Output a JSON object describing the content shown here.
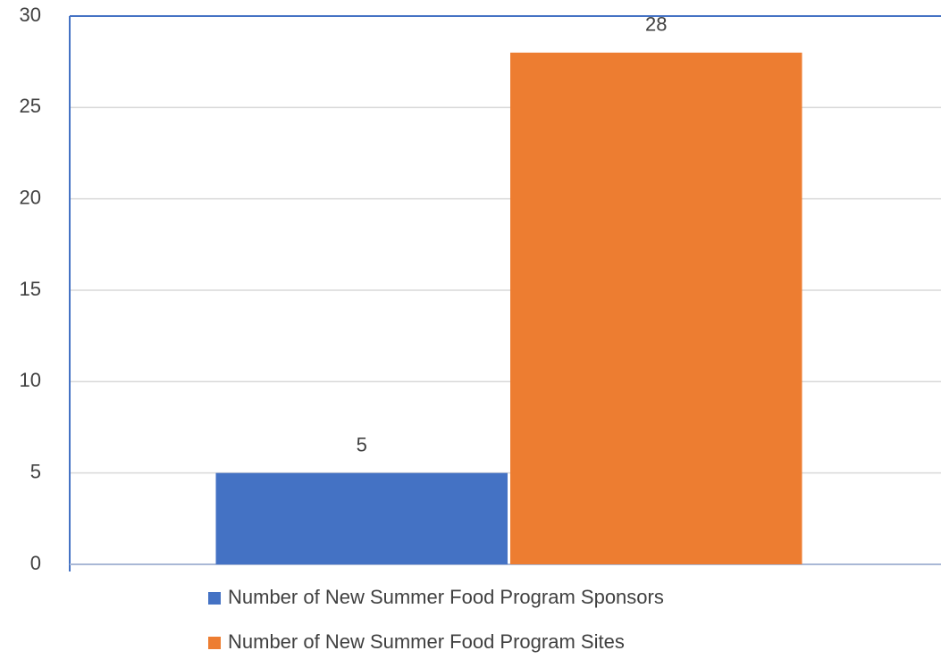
{
  "chart_data": {
    "type": "bar",
    "categories": [
      null
    ],
    "series": [
      {
        "name": "Number of New Summer Food Program Sponsors",
        "color": "#4472c4",
        "values": [
          5
        ]
      },
      {
        "name": "Number of New Summer Food Program Sites",
        "color": "#ed7d31",
        "values": [
          28
        ]
      }
    ],
    "ylim": [
      0,
      30
    ],
    "yticks": [
      0,
      5,
      10,
      15,
      20,
      25,
      30
    ],
    "grid": true,
    "legend": "bottom"
  }
}
